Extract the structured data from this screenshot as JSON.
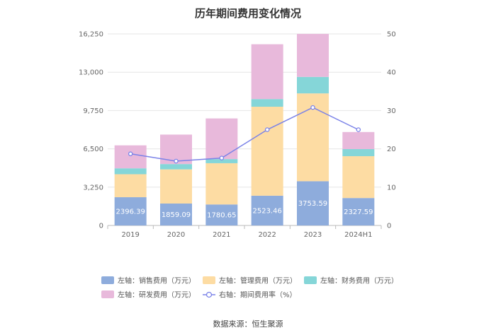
{
  "chart_data": {
    "type": "bar",
    "stacked": true,
    "title": "历年期间费用变化情况",
    "categories": [
      "2019",
      "2020",
      "2021",
      "2022",
      "2023",
      "2024H1"
    ],
    "y_left": {
      "ticks": [
        "0",
        "3,250",
        "6,500",
        "9,750",
        "13,000",
        "16,250"
      ],
      "range": [
        0,
        16250
      ]
    },
    "y_right": {
      "ticks": [
        "0",
        "10",
        "20",
        "30",
        "40",
        "50"
      ],
      "range": [
        0,
        50
      ]
    },
    "series": [
      {
        "name": "左轴：销售费用（万元）",
        "color": "#8eacdc",
        "values": [
          2396.39,
          1859.09,
          1780.65,
          2523.46,
          3753.59,
          2327.59
        ],
        "labels": [
          "2396.39",
          "1859.09",
          "1780.65",
          "2523.46",
          "3753.59",
          "2327.59"
        ]
      },
      {
        "name": "左轴：管理费用（万元）",
        "color": "#fddca3",
        "values": [
          1950,
          2900,
          3500,
          7550,
          7450,
          3550
        ]
      },
      {
        "name": "左轴：财务费用（万元）",
        "color": "#85d6d8",
        "values": [
          500,
          450,
          350,
          650,
          1400,
          600
        ]
      },
      {
        "name": "左轴：研发费用（万元）",
        "color": "#e8b9db",
        "values": [
          1950,
          2500,
          3450,
          4650,
          3650,
          1450
        ]
      }
    ],
    "line_series": {
      "name": "右轴：期间费用率（%）",
      "color": "#7b83e8",
      "values": [
        18.7,
        16.8,
        17.6,
        25.0,
        30.8,
        25.0
      ]
    },
    "source": "数据来源：恒生聚源"
  }
}
